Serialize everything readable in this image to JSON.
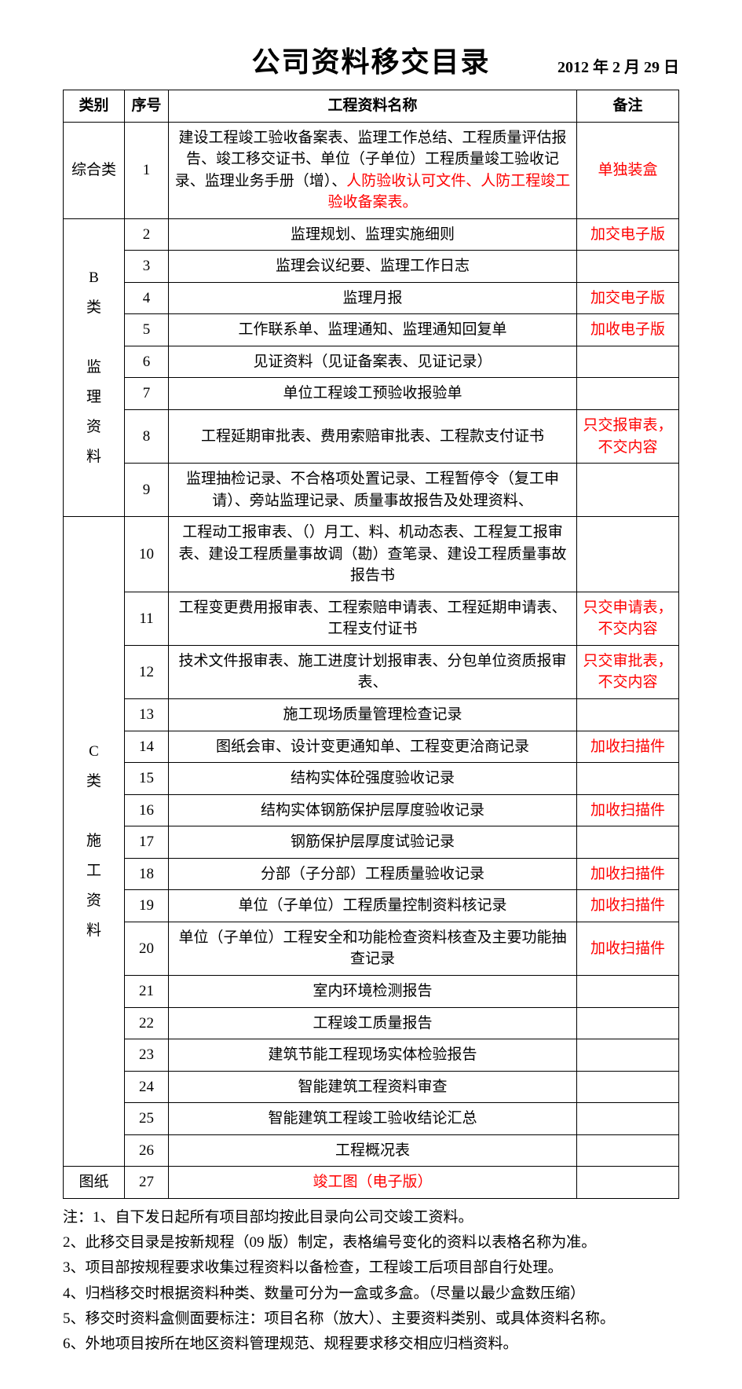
{
  "title": "公司资料移交目录",
  "date": "2012 年 2 月 29 日",
  "headers": {
    "category": "类别",
    "seq": "序号",
    "name": "工程资料名称",
    "note": "备注"
  },
  "catA": {
    "label": "综合类",
    "rows": [
      {
        "seq": "1",
        "name_black": "建设工程竣工验收备案表、监理工作总结、工程质量评估报告、竣工移交证书、单位（子单位）工程质量竣工验收记录、监理业务手册（增）、",
        "name_red": "人防验收认可文件、人防工程竣工验收备案表。",
        "note": "单独装盒",
        "note_red": true
      }
    ]
  },
  "catB": {
    "label": "B\n类\n\n监\n理\n资\n料",
    "rows": [
      {
        "seq": "2",
        "name": "监理规划、监理实施细则",
        "note": "加交电子版",
        "note_red": true
      },
      {
        "seq": "3",
        "name": "监理会议纪要、监理工作日志",
        "note": ""
      },
      {
        "seq": "4",
        "name": "监理月报",
        "note": "加交电子版",
        "note_red": true
      },
      {
        "seq": "5",
        "name": "工作联系单、监理通知、监理通知回复单",
        "note": "加收电子版",
        "note_red": true
      },
      {
        "seq": "6",
        "name": "见证资料（见证备案表、见证记录）",
        "note": ""
      },
      {
        "seq": "7",
        "name": "单位工程竣工预验收报验单",
        "note": ""
      },
      {
        "seq": "8",
        "name": "工程延期审批表、费用索赔审批表、工程款支付证书",
        "note": "只交报审表，不交内容",
        "note_red": true
      },
      {
        "seq": "9",
        "name": "监理抽检记录、不合格项处置记录、工程暂停令（复工申请）、旁站监理记录、质量事故报告及处理资料、",
        "note": ""
      }
    ]
  },
  "catC": {
    "label": "C\n类\n\n施\n工\n资\n料",
    "rows": [
      {
        "seq": "10",
        "name": "工程动工报审表、（）月工、料、机动态表、工程复工报审表、建设工程质量事故调（勘）查笔录、建设工程质量事故报告书",
        "note": ""
      },
      {
        "seq": "11",
        "name": "工程变更费用报审表、工程索赔申请表、工程延期申请表、工程支付证书",
        "note": "只交申请表，不交内容",
        "note_red": true
      },
      {
        "seq": "12",
        "name": "技术文件报审表、施工进度计划报审表、分包单位资质报审表、",
        "note": "只交审批表，不交内容",
        "note_red": true
      },
      {
        "seq": "13",
        "name": "施工现场质量管理检查记录",
        "note": ""
      },
      {
        "seq": "14",
        "name": "图纸会审、设计变更通知单、工程变更洽商记录",
        "note": "加收扫描件",
        "note_red": true
      },
      {
        "seq": "15",
        "name": "结构实体砼强度验收记录",
        "note": ""
      },
      {
        "seq": "16",
        "name": "结构实体钢筋保护层厚度验收记录",
        "note": "加收扫描件",
        "note_red": true
      },
      {
        "seq": "17",
        "name": "钢筋保护层厚度试验记录",
        "note": ""
      },
      {
        "seq": "18",
        "name": "分部（子分部）工程质量验收记录",
        "note": "加收扫描件",
        "note_red": true
      },
      {
        "seq": "19",
        "name": "单位（子单位）工程质量控制资料核记录",
        "note": "加收扫描件",
        "note_red": true
      },
      {
        "seq": "20",
        "name": "单位（子单位）工程安全和功能检查资料核查及主要功能抽查记录",
        "note": "加收扫描件",
        "note_red": true
      },
      {
        "seq": "21",
        "name": "室内环境检测报告",
        "note": ""
      },
      {
        "seq": "22",
        "name": "工程竣工质量报告",
        "note": ""
      },
      {
        "seq": "23",
        "name": "建筑节能工程现场实体检验报告",
        "note": ""
      },
      {
        "seq": "24",
        "name": "智能建筑工程资料审查",
        "note": ""
      },
      {
        "seq": "25",
        "name": "智能建筑工程竣工验收结论汇总",
        "note": ""
      },
      {
        "seq": "26",
        "name": "工程概况表",
        "note": ""
      }
    ]
  },
  "catD": {
    "label": "图纸",
    "rows": [
      {
        "seq": "27",
        "name": "竣工图（电子版）",
        "name_red": true,
        "note": ""
      }
    ]
  },
  "notes": [
    "注：1、自下发日起所有项目部均按此目录向公司交竣工资料。",
    "2、此移交目录是按新规程（09 版）制定，表格编号变化的资料以表格名称为准。",
    "3、项目部按规程要求收集过程资料以备检查，工程竣工后项目部自行处理。",
    "4、归档移交时根据资料种类、数量可分为一盒或多盒。（尽量以最少盒数压缩）",
    "5、移交时资料盒侧面要标注：项目名称（放大）、主要资料类别、或具体资料名称。",
    "6、外地项目按所在地区资料管理规范、规程要求移交相应归档资料。"
  ]
}
